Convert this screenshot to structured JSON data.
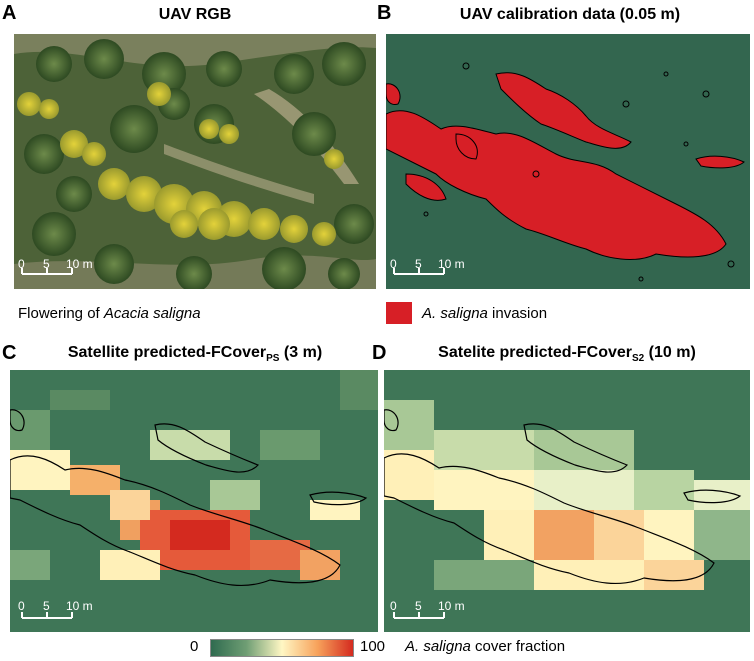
{
  "panels": {
    "a": {
      "letter": "A",
      "title": "UAV RGB",
      "caption_pre": "Flowering of ",
      "caption_italic": "Acacia saligna",
      "scale": [
        "0",
        "5",
        "10 m"
      ]
    },
    "b": {
      "letter": "B",
      "title": "UAV calibration data (0.05 m)",
      "legend_italic": "A. saligna",
      "legend_rest": " invasion",
      "scale": [
        "0",
        "5",
        "10 m"
      ]
    },
    "c": {
      "letter": "C",
      "title_main": "Satellite predicted-FCover",
      "title_sub": "PS",
      "title_tail": " (3 m)",
      "scale": [
        "0",
        "5",
        "10 m"
      ]
    },
    "d": {
      "letter": "D",
      "title_main": "Satelite predicted-FCover",
      "title_sub": "S2",
      "title_tail": " (10 m)",
      "scale": [
        "0",
        "5",
        "10 m"
      ]
    }
  },
  "colorbar": {
    "min": "0",
    "max": "100",
    "label_italic": "A. saligna",
    "label_rest": " cover fraction"
  },
  "colors": {
    "background_map": "#33664f",
    "invasion": "#d71f26",
    "cbar_low": "#2f6b4f",
    "cbar_mid": "#fff7c4",
    "cbar_high": "#d42a1f"
  }
}
